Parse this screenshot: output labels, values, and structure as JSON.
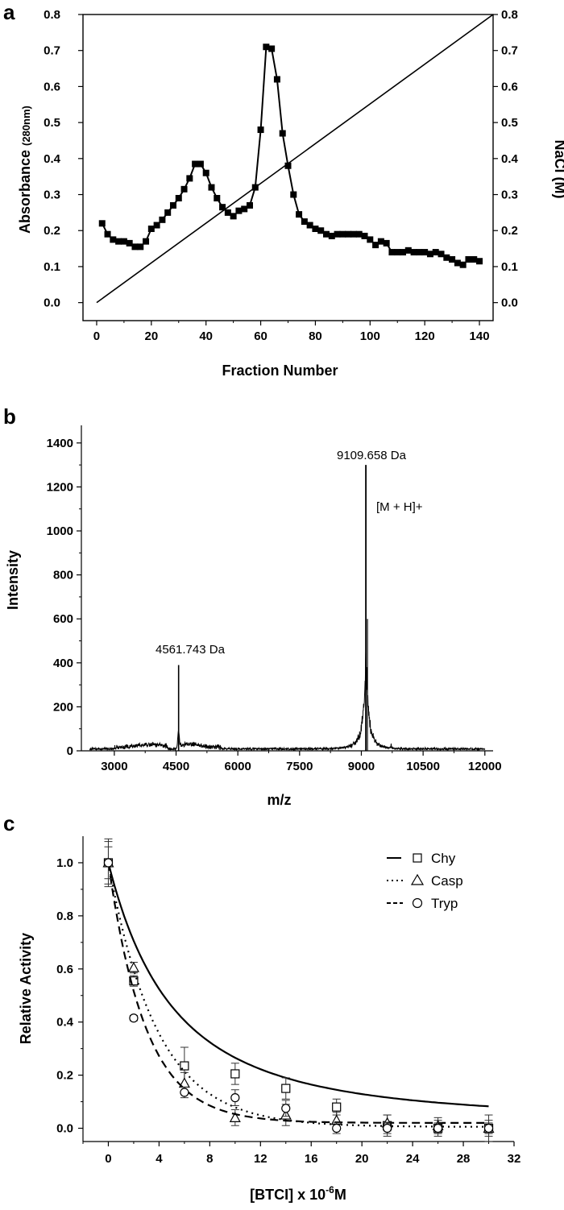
{
  "chart_data": [
    {
      "panel": "a",
      "type": "line",
      "xlabel": "Fraction Number",
      "ylabel": "Absorbance",
      "ylabel_sub": "(280nm)",
      "y2label": "NaCl  (M)",
      "xlim": [
        -5,
        145
      ],
      "ylim": [
        -0.05,
        0.8
      ],
      "y2lim": [
        -0.05,
        0.8
      ],
      "xticks": [
        0,
        20,
        40,
        60,
        80,
        100,
        120,
        140
      ],
      "yticks": [
        0.0,
        0.1,
        0.2,
        0.3,
        0.4,
        0.5,
        0.6,
        0.7,
        0.8
      ],
      "y2ticks": [
        0.0,
        0.1,
        0.2,
        0.3,
        0.4,
        0.5,
        0.6,
        0.7,
        0.8
      ],
      "series": [
        {
          "x": [
            2,
            4,
            6,
            8,
            10,
            12,
            14,
            16,
            18,
            20,
            22,
            24,
            26,
            28,
            30,
            32,
            34,
            36,
            38,
            40,
            42,
            44,
            46,
            48,
            50,
            52,
            54,
            56,
            58,
            60,
            62,
            64,
            66,
            68,
            70,
            72,
            74,
            76,
            78,
            80,
            82,
            84,
            86,
            88,
            90,
            92,
            94,
            96,
            98,
            100,
            102,
            104,
            106,
            108,
            110,
            112,
            114,
            116,
            118,
            120,
            122,
            124,
            126,
            128,
            130,
            132,
            134,
            136,
            138,
            140
          ],
          "values": [
            0.22,
            0.19,
            0.175,
            0.17,
            0.17,
            0.165,
            0.155,
            0.155,
            0.17,
            0.205,
            0.215,
            0.23,
            0.25,
            0.27,
            0.29,
            0.315,
            0.345,
            0.385,
            0.385,
            0.36,
            0.32,
            0.29,
            0.265,
            0.25,
            0.24,
            0.255,
            0.26,
            0.27,
            0.32,
            0.48,
            0.71,
            0.705,
            0.62,
            0.47,
            0.38,
            0.3,
            0.245,
            0.225,
            0.215,
            0.205,
            0.2,
            0.19,
            0.185,
            0.19,
            0.19,
            0.19,
            0.19,
            0.19,
            0.185,
            0.175,
            0.16,
            0.17,
            0.165,
            0.14,
            0.14,
            0.14,
            0.145,
            0.14,
            0.14,
            0.14,
            0.135,
            0.14,
            0.135,
            0.125,
            0.12,
            0.11,
            0.105,
            0.12,
            0.12,
            0.115
          ]
        },
        {
          "x": [
            0,
            145
          ],
          "values": [
            0.0,
            0.8
          ]
        }
      ]
    },
    {
      "panel": "b",
      "type": "line",
      "xlabel": "m/z",
      "ylabel": "Intensity",
      "xlim": [
        2200,
        12200
      ],
      "ylim": [
        0,
        1480
      ],
      "xticks": [
        3000,
        4500,
        6000,
        7500,
        9000,
        10500,
        12000
      ],
      "yticks": [
        0,
        200,
        400,
        600,
        800,
        1000,
        1200,
        1400
      ],
      "annotations": [
        "9109.658 Da",
        "[M + H]+",
        "4561.743 Da"
      ],
      "peaks": [
        {
          "mz": 4561.743,
          "intensity": 390
        },
        {
          "mz": 9109.658,
          "intensity": 1300
        }
      ]
    },
    {
      "panel": "c",
      "type": "scatter",
      "xlabel": "[BTCI] x 10",
      "xlabel_sup": "-6",
      "xlabel_suffix": "M",
      "ylabel": "Relative  Activity",
      "xlim": [
        -2,
        32
      ],
      "ylim": [
        -0.05,
        1.1
      ],
      "xticks": [
        0,
        4,
        8,
        12,
        16,
        20,
        24,
        28,
        32
      ],
      "yticks": [
        0.0,
        0.2,
        0.4,
        0.6,
        0.8,
        1.0
      ],
      "legend": "top-right",
      "series": [
        {
          "name": "Chy",
          "marker": "square",
          "linestyle": "solid",
          "x": [
            0,
            2,
            6,
            10,
            14,
            18,
            22,
            26,
            30
          ],
          "values": [
            1.0,
            0.555,
            0.235,
            0.205,
            0.15,
            0.08,
            0.01,
            0.0,
            0.0
          ],
          "err": [
            0.09,
            0.02,
            0.07,
            0.04,
            0.04,
            0.03,
            0.04,
            0.03,
            0.05
          ]
        },
        {
          "name": "Casp",
          "marker": "triangle",
          "linestyle": "dotted",
          "x": [
            0,
            2,
            6,
            10,
            14,
            18,
            22,
            26,
            30
          ],
          "values": [
            1.0,
            0.605,
            0.17,
            0.04,
            0.05,
            0.03,
            0.02,
            0.01,
            0.0
          ],
          "err": [
            0.08,
            0.02,
            0.04,
            0.03,
            0.04,
            0.03,
            0.03,
            0.03,
            0.03
          ]
        },
        {
          "name": "Tryp",
          "marker": "circle",
          "linestyle": "dashed",
          "x": [
            0,
            2,
            6,
            10,
            14,
            18,
            22,
            26,
            30
          ],
          "values": [
            1.0,
            0.415,
            0.135,
            0.115,
            0.075,
            0.0,
            0.0,
            0.0,
            0.0
          ],
          "err": [
            0.06,
            0.01,
            0.02,
            0.03,
            0.03,
            0.02,
            0.02,
            0.02,
            0.02
          ]
        }
      ]
    }
  ],
  "labels": {
    "panel_a": "a",
    "panel_b": "b",
    "panel_c": "c"
  }
}
